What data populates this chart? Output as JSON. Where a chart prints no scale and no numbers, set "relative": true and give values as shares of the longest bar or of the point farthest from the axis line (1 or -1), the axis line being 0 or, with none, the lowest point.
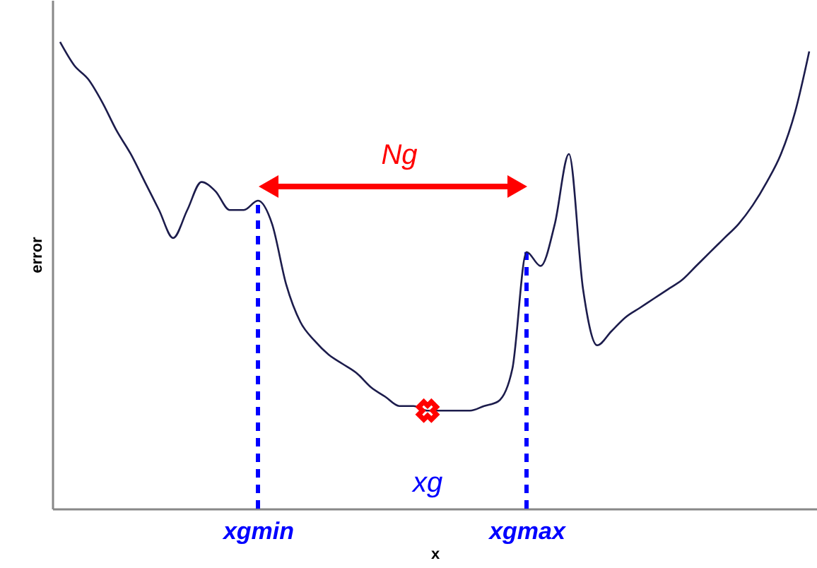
{
  "chart_data": {
    "type": "line",
    "relative": true,
    "xlabel": "x",
    "ylabel": "error",
    "grid": false,
    "categories": [
      null,
      null,
      null,
      null,
      null,
      null,
      null,
      null,
      null,
      null,
      null,
      null,
      null,
      null,
      "xgmin",
      null,
      null,
      null,
      null,
      null,
      null,
      null,
      null,
      null,
      null,
      null,
      null,
      null,
      null,
      null,
      null,
      null,
      null,
      "xgmax",
      null,
      null,
      null,
      null,
      null,
      null,
      null,
      null,
      null,
      null,
      null,
      null,
      null,
      null,
      null,
      null,
      null,
      null,
      null,
      null
    ],
    "series": [
      {
        "color": "#1c1c4c",
        "values": [
          1.0,
          0.95,
          0.92,
          0.87,
          0.81,
          0.76,
          0.7,
          0.64,
          0.58,
          0.64,
          0.7,
          0.68,
          0.64,
          0.64,
          0.66,
          0.61,
          0.48,
          0.4,
          0.36,
          0.33,
          0.31,
          0.29,
          0.26,
          0.24,
          0.22,
          0.22,
          0.21,
          0.21,
          0.21,
          0.21,
          0.22,
          0.23,
          0.3,
          0.55,
          0.52,
          0.61,
          0.76,
          0.47,
          0.35,
          0.38,
          0.41,
          0.43,
          0.45,
          0.47,
          0.49,
          0.52,
          0.55,
          0.58,
          0.61,
          0.65,
          0.7,
          0.76,
          0.85,
          0.98
        ]
      },
      {
        "type": "scatter",
        "color": "#ff0000",
        "marker": "cross",
        "values": [
          null,
          null,
          null,
          null,
          null,
          null,
          null,
          null,
          null,
          null,
          null,
          null,
          null,
          null,
          null,
          null,
          null,
          null,
          null,
          null,
          null,
          null,
          null,
          null,
          null,
          null,
          0.21,
          null,
          null,
          null,
          null,
          null,
          null,
          null,
          null,
          null,
          null,
          null,
          null,
          null,
          null,
          null,
          null,
          null,
          null,
          null,
          null,
          null,
          null,
          null,
          null,
          null,
          null,
          null
        ]
      }
    ],
    "ref_lines": [
      {
        "axis": "x",
        "value": "xgmin",
        "color": "#0000ff",
        "line_style": "dashed"
      },
      {
        "axis": "x",
        "value": "xgmax",
        "color": "#0000ff",
        "line_style": "dashed"
      }
    ],
    "annotations": [
      "Ng",
      "xg"
    ]
  }
}
